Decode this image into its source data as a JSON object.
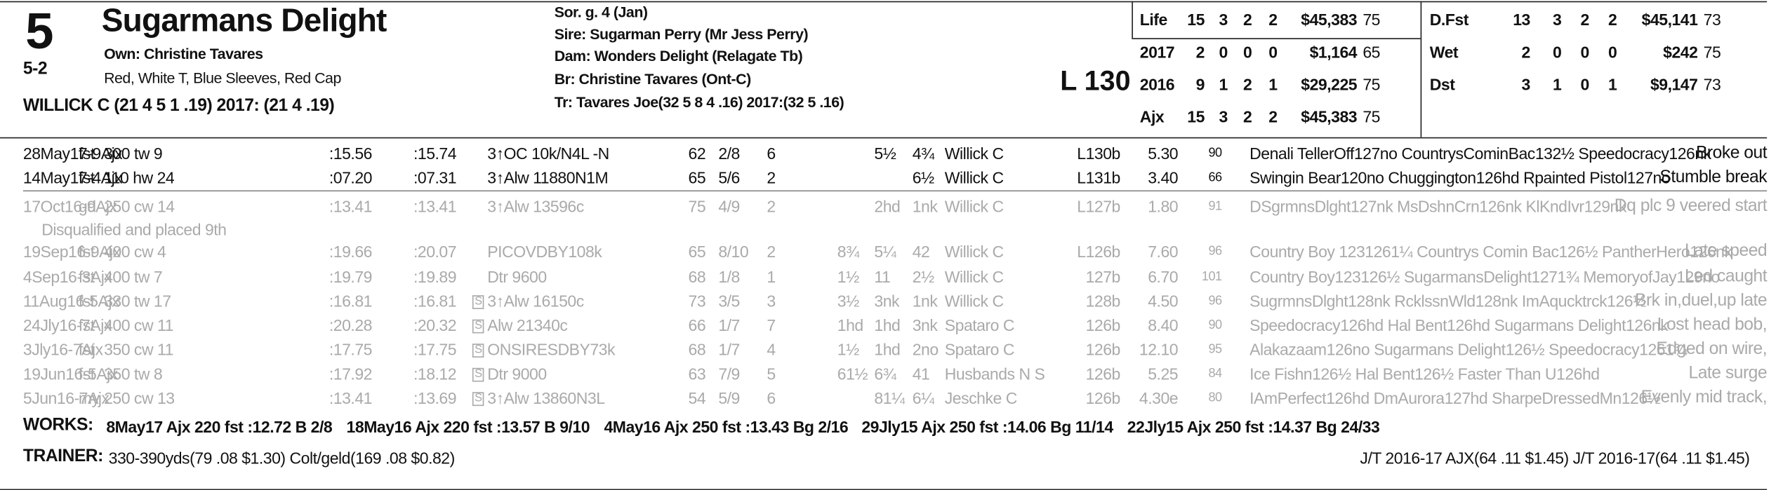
{
  "header": {
    "program_number": "5",
    "morning_line": "5-2",
    "horse_name": "Sugarmans Delight",
    "owner": "Own: Christine Tavares",
    "silks": "Red, White T, Blue Sleeves, Red Cap",
    "jockey": "WILLICK C (21 4 5 1 .19) 2017: (21 4 .19)",
    "sex_age": "Sor. g. 4 (Jan)",
    "sire": "Sire: Sugarman Perry (Mr Jess Perry)",
    "dam": "Dam: Wonders Delight (Relagate Tb)",
    "breeder": "Br:  Christine Tavares (Ont-C)",
    "trainer": "Tr:  Tavares Joe(32 5 8 4 .16)  2017:(32 5 .16)",
    "weight": "L 130"
  },
  "stats_left": [
    [
      "Life",
      "15",
      "3",
      "2",
      "2",
      "$45,383",
      "75"
    ],
    [
      "2017",
      "2",
      "0",
      "0",
      "0",
      "$1,164",
      "65"
    ],
    [
      "2016",
      "9",
      "1",
      "2",
      "1",
      "$29,225",
      "75"
    ],
    [
      "Ajx",
      "15",
      "3",
      "2",
      "2",
      "$45,383",
      "75"
    ]
  ],
  "stats_right": [
    [
      "D.Fst",
      "13",
      "3",
      "2",
      "2",
      "$45,141",
      "73"
    ],
    [
      "Wet",
      "2",
      "0",
      "0",
      "0",
      "$242",
      "75"
    ],
    [
      "Dst",
      "3",
      "1",
      "0",
      "1",
      "$9,147",
      "73"
    ]
  ],
  "races": [
    {
      "cells": [
        "28May17-9Ajx",
        "fst",
        "300 tw 9",
        ":15.56",
        ":15.74",
        "3↑OC 10k/N4L -N",
        "62",
        "2/8",
        "6",
        "",
        "5½",
        "4¾",
        "Willick C",
        "L130b",
        "5.30",
        "90",
        "Denali TellerOff127no CountrysCominBac132½ Speedocracy126nk",
        "Broke out"
      ]
    },
    {
      "cells": [
        "14May17-4Ajx",
        "fst",
        "110 hw 24",
        ":07.20",
        ":07.31",
        "3↑Alw 11880N1M",
        "65",
        "5/6",
        "2",
        "",
        "",
        "6½",
        "Willick C",
        "L131b",
        "3.40",
        "66",
        "Swingin Bear120no Chuggington126hd Rpainted Pistol127no",
        "Stumble break"
      ]
    },
    {
      "cells": [
        "17Oct16-9Ajx",
        "gd",
        "250 cw 14",
        ":13.41",
        ":13.41",
        "3↑Alw 13596c",
        "75",
        "4/9",
        "2",
        "",
        "2hd",
        "1nk",
        "Willick C",
        "L127b",
        "1.80",
        "91",
        "DSgrmnsDlght127nk MsDshnCrn126nk KlKndIvr129nk",
        "Dq plc 9 veered start"
      ],
      "note": "Disqualified and placed 9th"
    },
    {
      "cells": [
        "19Sep16-9Ajx",
        "fst",
        "400 cw 4",
        ":19.66",
        ":20.07",
        "PICOVDBY108k",
        "65",
        "8/10",
        "2",
        "8¾",
        "5¼",
        "42",
        "Willick C",
        "L126b",
        "7.60",
        "96",
        "Country Boy 1231261¼ Countrys Comin Bac126½ PantherHero126nk",
        "Late speed"
      ]
    },
    {
      "cells": [
        "4Sep16-3Ajx",
        "fst",
        "400 tw 7",
        ":19.79",
        ":19.89",
        "Dtr 9600",
        "68",
        "1/8",
        "1",
        "1½",
        "11",
        "2½",
        "Willick C",
        "127b",
        "6.70",
        "101",
        "Country Boy123126½ SugarmansDelight1271¾ MemoryofJay129no",
        "Led caught"
      ]
    },
    {
      "cells": [
        "11Aug16-5Ajx",
        "fst",
        "330 tw 17",
        ":16.81",
        ":16.81",
        "3↑Alw 16150c",
        "73",
        "3/5",
        "3",
        "3½",
        "3nk",
        "1nk",
        "Willick C",
        "128b",
        "4.50",
        "96",
        "SugrmnsDlght128nk RcklssnWld128nk ImAqucktrck126½",
        "Brk in,duel,up late"
      ],
      "box": "S"
    },
    {
      "cells": [
        "24Jly16-7Ajx",
        "fst",
        "400 cw 11",
        ":20.28",
        ":20.32",
        "Alw 21340c",
        "66",
        "1/7",
        "7",
        "1hd",
        "1hd",
        "3nk",
        "Spataro C",
        "126b",
        "8.40",
        "90",
        "Speedocracy126hd Hal Bent126hd Sugarmans Delight126nk",
        "Lost head bob,"
      ],
      "box": "S"
    },
    {
      "cells": [
        "3Jly16-7Ajx",
        "fst",
        "350 cw 11",
        ":17.75",
        ":17.75",
        "ONSIRESDBY73k",
        "68",
        "1/7",
        "4",
        "1½",
        "1hd",
        "2no",
        "Spataro C",
        "126b",
        "12.10",
        "95",
        "Alakazaam126no Sugarmans Delight126½ Speedocracy1261¾",
        "Edged on wire,"
      ],
      "box": "S"
    },
    {
      "cells": [
        "19Jun16-5Ajx",
        "fst",
        "350 tw 8",
        ":17.92",
        ":18.12",
        "Dtr 9000",
        "63",
        "7/9",
        "5",
        "61½",
        "6¾",
        "41",
        "Husbands N S",
        "126b",
        "5.25",
        "84",
        "Ice Fishn126½ Hal Bent126½ Faster Than U126hd",
        "Late surge"
      ],
      "box": "S"
    },
    {
      "cells": [
        "5Jun16-7Ajx",
        "my",
        "250 cw 13",
        ":13.41",
        ":13.69",
        "3↑Alw 13860N3L",
        "54",
        "5/9",
        "6",
        "",
        "81¼",
        "6¼",
        "Jeschke C",
        "126b",
        "4.30e",
        "80",
        "IAmPerfect126hd DmAurora127hd SharpeDressedMn126½",
        "Evenly mid track,"
      ],
      "box": "S"
    }
  ],
  "works": {
    "label": "WORKS:",
    "items": [
      "8May17 Ajx 220 fst :12.72 B 2/8",
      "18May16 Ajx 220 fst :13.57 B 9/10",
      "4May16 Ajx 250 fst :13.43 Bg 2/16",
      "29Jly15 Ajx 250 fst :14.06 Bg 11/14",
      "22Jly15 Ajx 250 fst :14.37 Bg 24/33"
    ]
  },
  "trainer_stats": {
    "label": "TRAINER:",
    "left": "330-390yds(79 .08 $1.30) Colt/geld(169 .08 $0.82)",
    "right": "J/T 2016-17 AJX(64 .11 $1.45)  J/T 2016-17(64 .11 $1.45)"
  }
}
